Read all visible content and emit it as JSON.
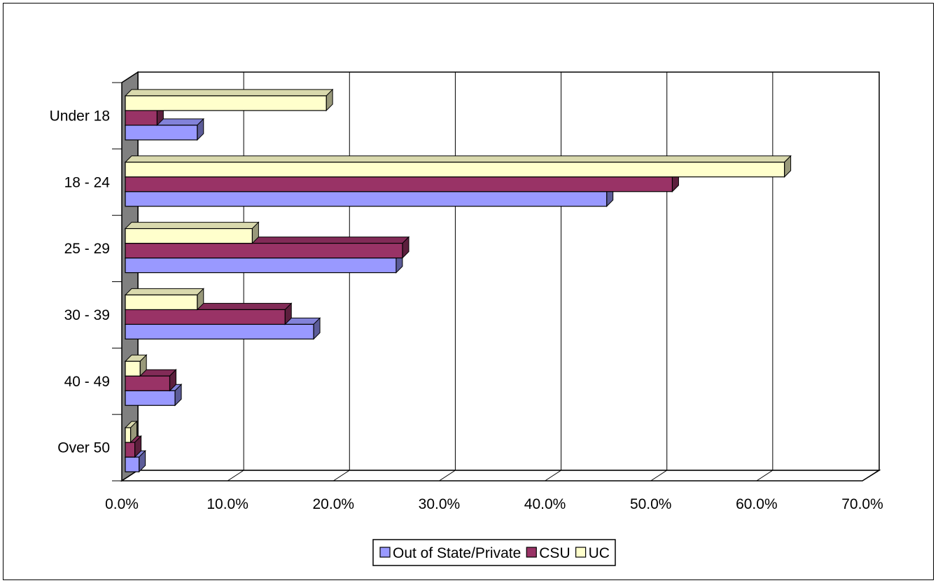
{
  "chart_data": {
    "type": "bar",
    "orientation": "horizontal",
    "style": "3d",
    "title": "",
    "xlabel": "",
    "ylabel": "",
    "xlim": [
      0,
      70
    ],
    "x_ticks": [
      "0.0%",
      "10.0%",
      "20.0%",
      "30.0%",
      "40.0%",
      "50.0%",
      "60.0%",
      "70.0%"
    ],
    "grid": true,
    "legend_position": "bottom",
    "categories": [
      "Under 18",
      "18 - 24",
      "25 - 29",
      "30 - 39",
      "40 - 49",
      "Over 50"
    ],
    "series": [
      {
        "name": "Out of State/Private",
        "color": "#9999ff",
        "values": [
          6.8,
          45.5,
          25.6,
          17.8,
          4.7,
          1.3
        ]
      },
      {
        "name": "CSU",
        "color": "#993366",
        "values": [
          3.0,
          51.7,
          26.2,
          15.1,
          4.2,
          0.9
        ]
      },
      {
        "name": "UC",
        "color": "#ffffcc",
        "values": [
          19.0,
          62.3,
          12.0,
          6.8,
          1.4,
          0.5
        ]
      }
    ]
  }
}
